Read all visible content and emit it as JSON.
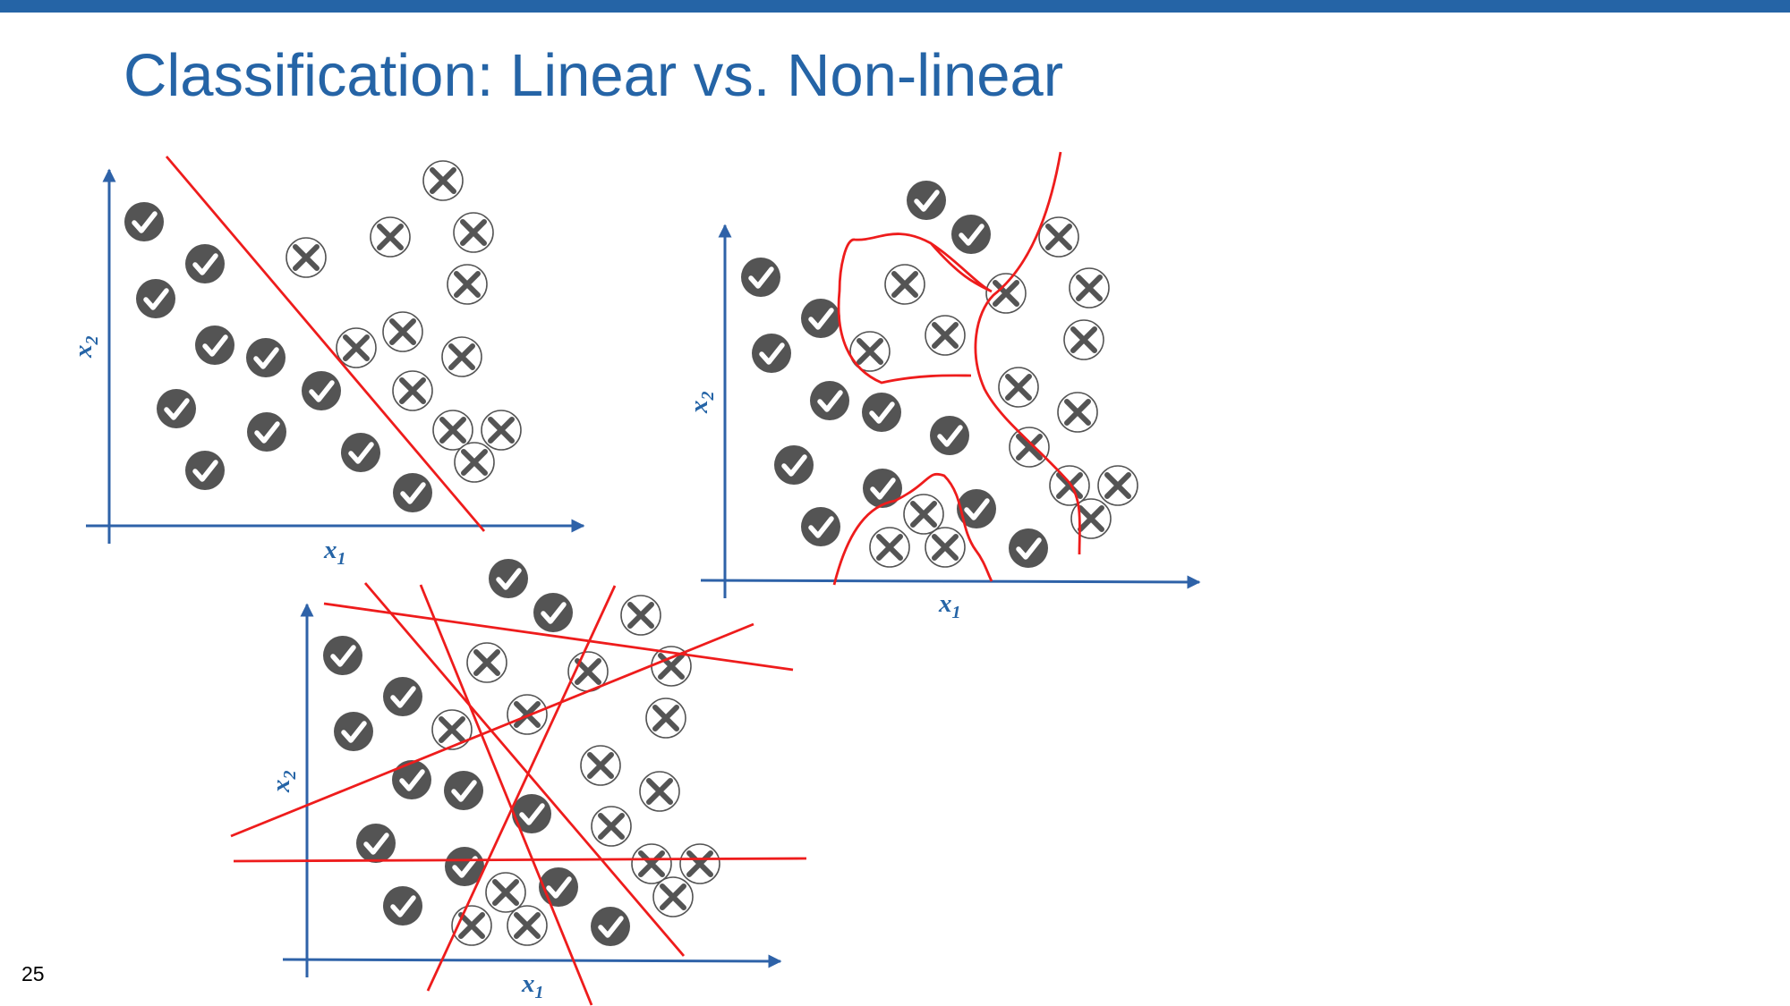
{
  "header": {
    "title": "Classification: Linear vs. Non-linear"
  },
  "footer": {
    "slide_number": "25"
  },
  "colors": {
    "accent_blue": "#2564a6",
    "axis_blue": "#2e62a8",
    "boundary_red": "#ee1c1c",
    "marker_dark": "#545454",
    "marker_fill_light": "#ffffff"
  },
  "legend_icons": {
    "positive_marker": "check-circle-icon",
    "negative_marker": "x-circle-icon"
  },
  "plots": [
    {
      "id": "linear-plot",
      "x_label": "x",
      "x_label_sub": "1",
      "y_label": "x",
      "y_label_sub": "2",
      "boundary_type": "single-line"
    },
    {
      "id": "nonlinear-plot",
      "x_label": "x",
      "x_label_sub": "1",
      "y_label": "x",
      "y_label_sub": "2",
      "boundary_type": "curves"
    },
    {
      "id": "multi-line-plot",
      "x_label": "x",
      "x_label_sub": "1",
      "y_label": "x",
      "y_label_sub": "2",
      "boundary_type": "multiple-lines"
    }
  ]
}
